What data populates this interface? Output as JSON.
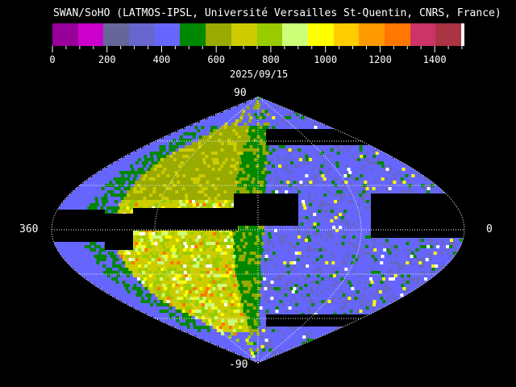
{
  "title": "SWAN/SoHO (LATMOS-IPSL, Université Versailles St-Quentin, CNRS, France)",
  "date": "2025/09/15",
  "colorbar": {
    "min": 0,
    "max": 1500,
    "tick_labels": [
      "0",
      "200",
      "400",
      "600",
      "800",
      "1000",
      "1200",
      "1400"
    ],
    "colors": [
      "#990099",
      "#cc00cc",
      "#666699",
      "#6666cc",
      "#6666ff",
      "#008800",
      "#99aa00",
      "#cccc00",
      "#99cc00",
      "#ccff77",
      "#ffff00",
      "#ffcc00",
      "#ff9900",
      "#ff7700",
      "#cc3366",
      "#aa3344",
      "#ffffff"
    ]
  },
  "map": {
    "lat_top": "90",
    "lat_bottom": "-90",
    "lon_left": "360",
    "lon_right": "0"
  }
}
